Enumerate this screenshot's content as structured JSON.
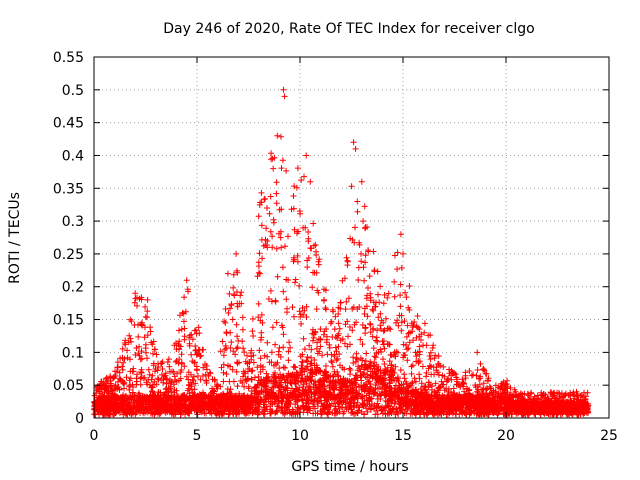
{
  "chart_data": {
    "type": "scatter",
    "title": "Day 246 of 2020, Rate Of TEC Index for receiver clgo",
    "xlabel": "GPS time / hours",
    "ylabel": "ROTI / TECUs",
    "xlim": [
      0,
      25
    ],
    "ylim": [
      0,
      0.55
    ],
    "x_ticks": [
      "0",
      "5",
      "10",
      "15",
      "20",
      "25"
    ],
    "y_ticks": [
      "0",
      "0.05",
      "0.1",
      "0.15",
      "0.2",
      "0.25",
      "0.3",
      "0.35",
      "0.4",
      "0.45",
      "0.5",
      "0.55"
    ],
    "grid": true,
    "marker": "+",
    "color": "#ff0000",
    "envelope": {
      "x": [
        0,
        0.5,
        1,
        1.5,
        2,
        2.5,
        3,
        3.5,
        4,
        4.5,
        5,
        5.5,
        6,
        6.5,
        7,
        7.5,
        8,
        8.5,
        9,
        9.5,
        10,
        10.5,
        11,
        11.5,
        12,
        12.5,
        13,
        13.5,
        14,
        14.5,
        15,
        15.5,
        16,
        16.5,
        17,
        17.5,
        18,
        18.5,
        19,
        19.5,
        20,
        20.5,
        21,
        21.5,
        22,
        22.5,
        23,
        23.5,
        24
      ],
      "peak": [
        0.05,
        0.06,
        0.07,
        0.12,
        0.19,
        0.18,
        0.1,
        0.08,
        0.14,
        0.21,
        0.15,
        0.08,
        0.05,
        0.22,
        0.25,
        0.07,
        0.32,
        0.43,
        0.5,
        0.32,
        0.4,
        0.32,
        0.24,
        0.17,
        0.2,
        0.42,
        0.36,
        0.27,
        0.22,
        0.24,
        0.28,
        0.16,
        0.16,
        0.11,
        0.08,
        0.07,
        0.07,
        0.1,
        0.07,
        0.05,
        0.06,
        0.04,
        0.04,
        0.04,
        0.04,
        0.04,
        0.04,
        0.04,
        0.04
      ],
      "base": [
        0.025,
        0.025,
        0.03,
        0.03,
        0.03,
        0.03,
        0.03,
        0.03,
        0.03,
        0.03,
        0.03,
        0.03,
        0.03,
        0.03,
        0.03,
        0.03,
        0.05,
        0.06,
        0.06,
        0.06,
        0.07,
        0.08,
        0.07,
        0.06,
        0.06,
        0.05,
        0.08,
        0.08,
        0.07,
        0.07,
        0.05,
        0.04,
        0.035,
        0.03,
        0.03,
        0.03,
        0.03,
        0.03,
        0.025,
        0.025,
        0.025,
        0.02,
        0.02,
        0.02,
        0.02,
        0.02,
        0.02,
        0.02,
        0.02
      ]
    },
    "notable_points": [
      {
        "x": 2.0,
        "y": 0.19
      },
      {
        "x": 2.6,
        "y": 0.18
      },
      {
        "x": 4.5,
        "y": 0.21
      },
      {
        "x": 6.5,
        "y": 0.22
      },
      {
        "x": 6.9,
        "y": 0.25
      },
      {
        "x": 8.4,
        "y": 0.32
      },
      {
        "x": 8.7,
        "y": 0.38
      },
      {
        "x": 8.9,
        "y": 0.43
      },
      {
        "x": 9.2,
        "y": 0.5
      },
      {
        "x": 9.25,
        "y": 0.49
      },
      {
        "x": 10.3,
        "y": 0.4
      },
      {
        "x": 10.5,
        "y": 0.36
      },
      {
        "x": 12.6,
        "y": 0.42
      },
      {
        "x": 12.7,
        "y": 0.41
      },
      {
        "x": 13.0,
        "y": 0.36
      },
      {
        "x": 14.9,
        "y": 0.28
      },
      {
        "x": 15.0,
        "y": 0.25
      },
      {
        "x": 18.6,
        "y": 0.1
      }
    ]
  }
}
